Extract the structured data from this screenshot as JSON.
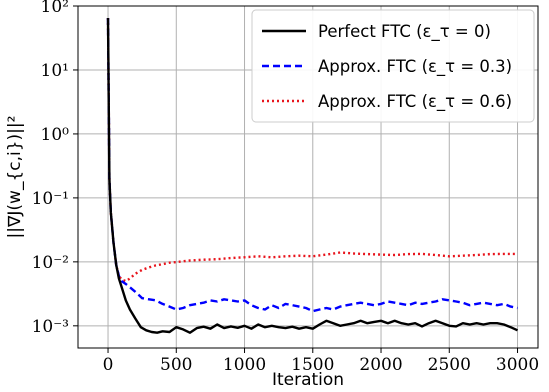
{
  "chart_data": {
    "type": "line",
    "xlabel": "Iteration",
    "ylabel": "||∇J(w_{c,i})||²",
    "yscale": "log",
    "xlim": [
      -220,
      3150
    ],
    "ylim": [
      0.00045,
      100
    ],
    "x_ticks": [
      0,
      500,
      1000,
      1500,
      2000,
      2500,
      3000
    ],
    "x_tick_labels": [
      "0",
      "500",
      "1000",
      "1500",
      "2000",
      "2500",
      "3000"
    ],
    "y_ticks": [
      0.001,
      0.01,
      0.1,
      1,
      10,
      100
    ],
    "y_tick_labels": [
      "10⁻³",
      "10⁻²",
      "10⁻¹",
      "10⁰",
      "10¹",
      "10²"
    ],
    "grid": true,
    "legend_position": "top-right",
    "series": [
      {
        "name": "Perfect FTC (ε_τ = 0)",
        "color": "#000000",
        "style": "solid",
        "x": [
          0,
          10,
          20,
          40,
          60,
          80,
          100,
          130,
          160,
          200,
          240,
          280,
          320,
          360,
          400,
          450,
          500,
          550,
          600,
          650,
          700,
          750,
          800,
          850,
          900,
          950,
          1000,
          1050,
          1100,
          1150,
          1200,
          1250,
          1300,
          1350,
          1400,
          1450,
          1500,
          1550,
          1600,
          1650,
          1700,
          1750,
          1800,
          1850,
          1900,
          1950,
          2000,
          2050,
          2100,
          2150,
          2200,
          2250,
          2300,
          2350,
          2400,
          2450,
          2500,
          2550,
          2600,
          2650,
          2700,
          2750,
          2800,
          2850,
          2900,
          2950,
          3000
        ],
        "y": [
          65,
          0.2,
          0.06,
          0.02,
          0.009,
          0.0055,
          0.004,
          0.0025,
          0.0018,
          0.0013,
          0.00095,
          0.00085,
          0.0008,
          0.00078,
          0.00082,
          0.0008,
          0.00095,
          0.00088,
          0.00078,
          0.00092,
          0.00097,
          0.0009,
          0.00105,
          0.00092,
          0.00098,
          0.00093,
          0.001,
          0.0009,
          0.00105,
          0.00095,
          0.001,
          0.00095,
          0.00092,
          0.00097,
          0.0009,
          0.00095,
          0.0009,
          0.00105,
          0.0012,
          0.0011,
          0.001,
          0.00105,
          0.0011,
          0.0012,
          0.0011,
          0.00115,
          0.0012,
          0.0011,
          0.0012,
          0.0011,
          0.00105,
          0.0011,
          0.00098,
          0.0011,
          0.0012,
          0.0011,
          0.001,
          0.00098,
          0.0011,
          0.00105,
          0.0011,
          0.00105,
          0.0011,
          0.0011,
          0.00105,
          0.00095,
          0.00085
        ]
      },
      {
        "name": "Approx. FTC (ε_τ = 0.3)",
        "color": "#0000ff",
        "style": "dashed",
        "x": [
          0,
          10,
          20,
          40,
          60,
          80,
          100,
          130,
          160,
          200,
          250,
          300,
          350,
          400,
          450,
          500,
          550,
          600,
          650,
          700,
          750,
          800,
          850,
          900,
          950,
          1000,
          1050,
          1100,
          1150,
          1200,
          1250,
          1300,
          1350,
          1400,
          1450,
          1500,
          1550,
          1600,
          1650,
          1700,
          1750,
          1800,
          1850,
          1900,
          1950,
          2000,
          2050,
          2100,
          2150,
          2200,
          2250,
          2300,
          2350,
          2400,
          2450,
          2500,
          2550,
          2600,
          2650,
          2700,
          2750,
          2800,
          2850,
          2900,
          2950,
          3000
        ],
        "y": [
          65,
          0.2,
          0.06,
          0.02,
          0.009,
          0.006,
          0.005,
          0.0045,
          0.004,
          0.0034,
          0.0027,
          0.0026,
          0.0025,
          0.0022,
          0.002,
          0.0018,
          0.0019,
          0.0021,
          0.0022,
          0.0023,
          0.0025,
          0.0024,
          0.0026,
          0.0025,
          0.0024,
          0.0025,
          0.0021,
          0.0019,
          0.0018,
          0.0021,
          0.0019,
          0.0022,
          0.0021,
          0.002,
          0.0019,
          0.0017,
          0.0018,
          0.0019,
          0.0018,
          0.002,
          0.0021,
          0.0022,
          0.0023,
          0.0022,
          0.0021,
          0.0022,
          0.0024,
          0.0023,
          0.0022,
          0.0021,
          0.0023,
          0.0022,
          0.0023,
          0.0024,
          0.0026,
          0.0025,
          0.0024,
          0.0023,
          0.0021,
          0.0022,
          0.0023,
          0.0022,
          0.0021,
          0.0022,
          0.002,
          0.0019
        ]
      },
      {
        "name": "Approx. FTC (ε_τ = 0.6)",
        "color": "#e8141c",
        "style": "dotted",
        "x": [
          0,
          10,
          20,
          40,
          60,
          80,
          100,
          130,
          160,
          200,
          250,
          300,
          350,
          400,
          450,
          500,
          600,
          700,
          800,
          900,
          1000,
          1100,
          1200,
          1300,
          1400,
          1500,
          1600,
          1700,
          1800,
          1900,
          2000,
          2100,
          2200,
          2300,
          2400,
          2500,
          2600,
          2700,
          2800,
          2900,
          3000
        ],
        "y": [
          65,
          0.2,
          0.06,
          0.02,
          0.009,
          0.006,
          0.0053,
          0.005,
          0.0055,
          0.0065,
          0.0075,
          0.0082,
          0.0088,
          0.0092,
          0.0097,
          0.0099,
          0.0105,
          0.0108,
          0.011,
          0.0115,
          0.0118,
          0.0122,
          0.0118,
          0.0122,
          0.0125,
          0.0122,
          0.013,
          0.014,
          0.0135,
          0.0132,
          0.013,
          0.0128,
          0.0132,
          0.0133,
          0.0128,
          0.0122,
          0.0125,
          0.0128,
          0.0132,
          0.0133,
          0.0133
        ]
      }
    ]
  }
}
